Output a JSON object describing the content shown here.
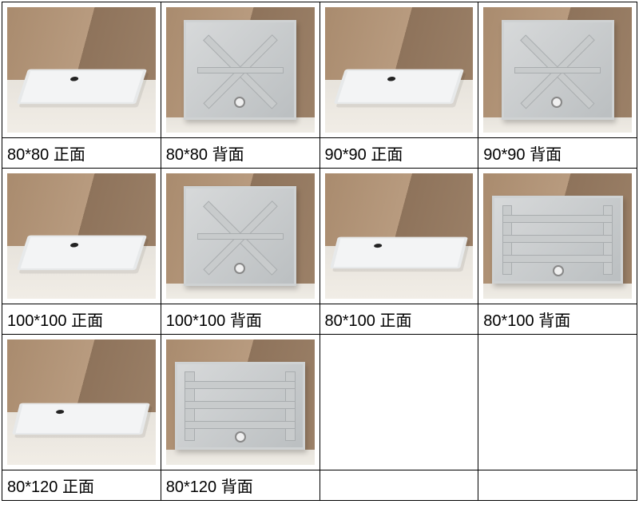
{
  "table": {
    "columns": 4,
    "border_color": "#000000",
    "background_color": "#ffffff",
    "label_fontsize": 20,
    "label_color": "#000000",
    "photo_backdrop_wall_color": "#a98b6e",
    "photo_backdrop_floor_color": "#e7e3dc",
    "tray_color": "#f3f4f5",
    "aluminium_color": "#c8cbcc",
    "rows": [
      {
        "cells": [
          {
            "view": "front",
            "shape": "square",
            "label": "80*80 正面"
          },
          {
            "view": "back",
            "shape": "square",
            "label": "80*80 背面"
          },
          {
            "view": "front",
            "shape": "square",
            "label": "90*90 正面"
          },
          {
            "view": "back",
            "shape": "square",
            "label": "90*90 背面"
          }
        ]
      },
      {
        "cells": [
          {
            "view": "front",
            "shape": "square",
            "label": "100*100 正面"
          },
          {
            "view": "back",
            "shape": "square",
            "label": "100*100 背面"
          },
          {
            "view": "front",
            "shape": "rect",
            "label": "80*100 正面"
          },
          {
            "view": "back",
            "shape": "rect",
            "label": "80*100 背面"
          }
        ]
      },
      {
        "cells": [
          {
            "view": "front",
            "shape": "rect",
            "label": "80*120 正面"
          },
          {
            "view": "back",
            "shape": "rect",
            "label": "80*120 背面"
          },
          {
            "view": "",
            "shape": "",
            "label": ""
          },
          {
            "view": "",
            "shape": "",
            "label": ""
          }
        ]
      }
    ]
  }
}
